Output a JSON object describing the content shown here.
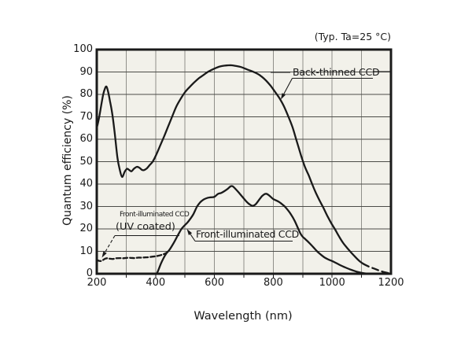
{
  "page": {
    "background": "#ffffff"
  },
  "chart": {
    "condition_label": "(Typ. Ta=25 °C)",
    "labels": {
      "back_thinned": "Back-thinned CCD",
      "front_illuminated": "Front-illuminated CCD",
      "uv_line1": "Front-illuminated CCD",
      "uv_line2": "(UV coated)"
    },
    "colors": {
      "plot_bg": "#f2f1ea",
      "grid_vertical": "#90908a",
      "grid_horizontal": "#4c4c48",
      "frame": "#1a1a1a",
      "curve": "#1a1a1a",
      "text": "#1a1a1a"
    }
  },
  "chart_data": {
    "type": "line",
    "title": "(Typ. Ta=25 °C)",
    "xlabel": "Wavelength (nm)",
    "ylabel": "Quantum efficiency (%)",
    "xlim": [
      200,
      1200
    ],
    "ylim": [
      0,
      100
    ],
    "x_tick_labels": [
      200,
      400,
      600,
      800,
      1000,
      1200
    ],
    "x_grid_step": 100,
    "y_tick_labels": [
      100,
      90,
      80,
      70,
      60,
      50,
      40,
      30,
      20,
      10,
      0
    ],
    "y_grid_step": 10,
    "grid": true,
    "legend_position": "inline-callouts",
    "series": [
      {
        "name": "Back-thinned CCD",
        "style": "solid",
        "points": [
          [
            200,
            65
          ],
          [
            207,
            69
          ],
          [
            215,
            75
          ],
          [
            222,
            80
          ],
          [
            228,
            82.7
          ],
          [
            233,
            83.5
          ],
          [
            238,
            81.5
          ],
          [
            245,
            77
          ],
          [
            252,
            72
          ],
          [
            260,
            64
          ],
          [
            270,
            52
          ],
          [
            278,
            46.5
          ],
          [
            286,
            43.2
          ],
          [
            295,
            45.5
          ],
          [
            303,
            46.8
          ],
          [
            310,
            46.3
          ],
          [
            318,
            45.7
          ],
          [
            326,
            46.8
          ],
          [
            336,
            47.7
          ],
          [
            345,
            47.3
          ],
          [
            353,
            46.4
          ],
          [
            360,
            46.2
          ],
          [
            370,
            47
          ],
          [
            380,
            48.5
          ],
          [
            390,
            50
          ],
          [
            402,
            53
          ],
          [
            415,
            57
          ],
          [
            428,
            61
          ],
          [
            442,
            65.5
          ],
          [
            456,
            70
          ],
          [
            470,
            74.5
          ],
          [
            485,
            78
          ],
          [
            500,
            81
          ],
          [
            515,
            83.2
          ],
          [
            530,
            85.2
          ],
          [
            545,
            87
          ],
          [
            560,
            88.4
          ],
          [
            580,
            90.2
          ],
          [
            600,
            91.5
          ],
          [
            620,
            92.5
          ],
          [
            640,
            92.9
          ],
          [
            655,
            93
          ],
          [
            672,
            92.7
          ],
          [
            690,
            92.2
          ],
          [
            710,
            91.2
          ],
          [
            730,
            90.2
          ],
          [
            745,
            89.3
          ],
          [
            760,
            88
          ],
          [
            775,
            86.2
          ],
          [
            790,
            84
          ],
          [
            805,
            81.3
          ],
          [
            820,
            78.5
          ],
          [
            835,
            75
          ],
          [
            850,
            70.5
          ],
          [
            865,
            65.5
          ],
          [
            880,
            59
          ],
          [
            895,
            52.5
          ],
          [
            908,
            47.5
          ],
          [
            920,
            44
          ],
          [
            932,
            40
          ],
          [
            945,
            36
          ],
          [
            958,
            32.5
          ],
          [
            970,
            29.5
          ],
          [
            983,
            26
          ],
          [
            996,
            22.8
          ],
          [
            1009,
            20
          ],
          [
            1022,
            17
          ],
          [
            1036,
            14
          ],
          [
            1050,
            11.7
          ],
          [
            1061,
            10
          ],
          [
            1075,
            8
          ],
          [
            1090,
            6
          ],
          [
            1105,
            4.5
          ]
        ]
      },
      {
        "name": "Back-thinned CCD (dashed tail)",
        "style": "dashed",
        "points": [
          [
            1105,
            4.5
          ],
          [
            1125,
            3.2
          ],
          [
            1145,
            2.2
          ],
          [
            1165,
            1.2
          ],
          [
            1185,
            0.5
          ],
          [
            1198,
            0.2
          ]
        ]
      },
      {
        "name": "Front-illuminated CCD",
        "style": "solid",
        "points": [
          [
            404,
            0
          ],
          [
            410,
            1.8
          ],
          [
            418,
            4.5
          ],
          [
            427,
            7
          ],
          [
            436,
            9
          ],
          [
            446,
            10.5
          ],
          [
            456,
            12.5
          ],
          [
            466,
            14.8
          ],
          [
            477,
            17.5
          ],
          [
            488,
            20
          ],
          [
            498,
            21.5
          ],
          [
            508,
            22.8
          ],
          [
            518,
            24.5
          ],
          [
            528,
            26.5
          ],
          [
            541,
            30
          ],
          [
            551,
            31.8
          ],
          [
            562,
            33
          ],
          [
            575,
            33.8
          ],
          [
            588,
            34.1
          ],
          [
            600,
            34.3
          ],
          [
            612,
            35.6
          ],
          [
            622,
            36
          ],
          [
            632,
            36.7
          ],
          [
            644,
            37.8
          ],
          [
            655,
            39
          ],
          [
            662,
            39
          ],
          [
            672,
            37.8
          ],
          [
            682,
            36.3
          ],
          [
            695,
            34.3
          ],
          [
            708,
            32.3
          ],
          [
            720,
            30.9
          ],
          [
            730,
            30.3
          ],
          [
            740,
            31
          ],
          [
            752,
            33
          ],
          [
            763,
            34.8
          ],
          [
            775,
            35.7
          ],
          [
            786,
            34.9
          ],
          [
            800,
            33.3
          ],
          [
            810,
            32.7
          ],
          [
            820,
            32
          ],
          [
            830,
            31
          ],
          [
            839,
            30
          ],
          [
            850,
            28.3
          ],
          [
            860,
            26.5
          ],
          [
            872,
            23.8
          ],
          [
            885,
            20
          ],
          [
            893,
            17.8
          ],
          [
            900,
            16.5
          ],
          [
            910,
            15.3
          ],
          [
            922,
            13.8
          ],
          [
            935,
            12
          ],
          [
            949,
            10
          ],
          [
            962,
            8.5
          ],
          [
            975,
            7.2
          ],
          [
            988,
            6.3
          ],
          [
            1000,
            5.7
          ],
          [
            1015,
            4.7
          ],
          [
            1030,
            3.7
          ],
          [
            1045,
            2.8
          ],
          [
            1060,
            2
          ],
          [
            1075,
            1.3
          ],
          [
            1090,
            0.7
          ],
          [
            1105,
            0.3
          ],
          [
            1118,
            0.1
          ]
        ]
      },
      {
        "name": "Front-illuminated CCD (UV coated)",
        "style": "dashed",
        "points": [
          [
            200,
            6.2
          ],
          [
            207,
            5.8
          ],
          [
            214,
            5.7
          ],
          [
            221,
            6.1
          ],
          [
            228,
            6.7
          ],
          [
            236,
            6.9
          ],
          [
            245,
            6.7
          ],
          [
            255,
            6.6
          ],
          [
            265,
            6.9
          ],
          [
            278,
            7
          ],
          [
            290,
            6.9
          ],
          [
            302,
            7.1
          ],
          [
            315,
            7.1
          ],
          [
            328,
            7
          ],
          [
            340,
            7.2
          ],
          [
            352,
            7.2
          ],
          [
            364,
            7.3
          ],
          [
            376,
            7.4
          ],
          [
            388,
            7.6
          ],
          [
            400,
            7.8
          ],
          [
            412,
            8.1
          ],
          [
            424,
            8.6
          ],
          [
            435,
            9.2
          ],
          [
            446,
            10.3
          ]
        ]
      }
    ]
  }
}
